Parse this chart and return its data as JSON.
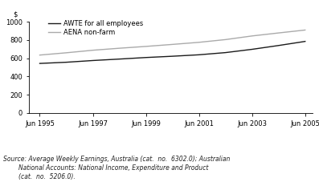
{
  "ylim": [
    0,
    1000
  ],
  "yticks": [
    0,
    200,
    400,
    600,
    800,
    1000
  ],
  "xlim_start": 1995.0,
  "xlim_end": 2005.7,
  "xtick_labels": [
    "Jun 1995",
    "Jun 1997",
    "Jun 1999",
    "Jun 2001",
    "Jun 2003",
    "Jun 2005"
  ],
  "xtick_positions": [
    1995.417,
    1997.417,
    1999.417,
    2001.417,
    2003.417,
    2005.417
  ],
  "awte_x": [
    1995.417,
    1996.417,
    1997.417,
    1998.417,
    1999.417,
    2000.417,
    2001.417,
    2002.417,
    2003.417,
    2004.417,
    2005.417
  ],
  "awte_y": [
    543,
    556,
    575,
    591,
    608,
    622,
    638,
    662,
    698,
    740,
    785
  ],
  "aena_x": [
    1995.417,
    1996.417,
    1997.417,
    1998.417,
    1999.417,
    2000.417,
    2001.417,
    2002.417,
    2003.417,
    2004.417,
    2005.417
  ],
  "aena_y": [
    635,
    660,
    688,
    710,
    730,
    752,
    775,
    805,
    845,
    878,
    910
  ],
  "awte_color": "#1a1a1a",
  "aena_color": "#aaaaaa",
  "awte_label": "AWTE for all employees",
  "aena_label": "AENA non-farm",
  "dollar_label": "$",
  "source_line1": "Source: Average Weekly Earnings, Australia (cat.  no.  6302.0); Australian",
  "source_line2": "        National Accounts: National Income, Expenditure and Product",
  "source_line3": "        (cat.  no.  5206.0).",
  "background_color": "#ffffff",
  "line_width": 1.0,
  "tick_fontsize": 6.0,
  "legend_fontsize": 6.0,
  "source_fontsize": 5.5
}
